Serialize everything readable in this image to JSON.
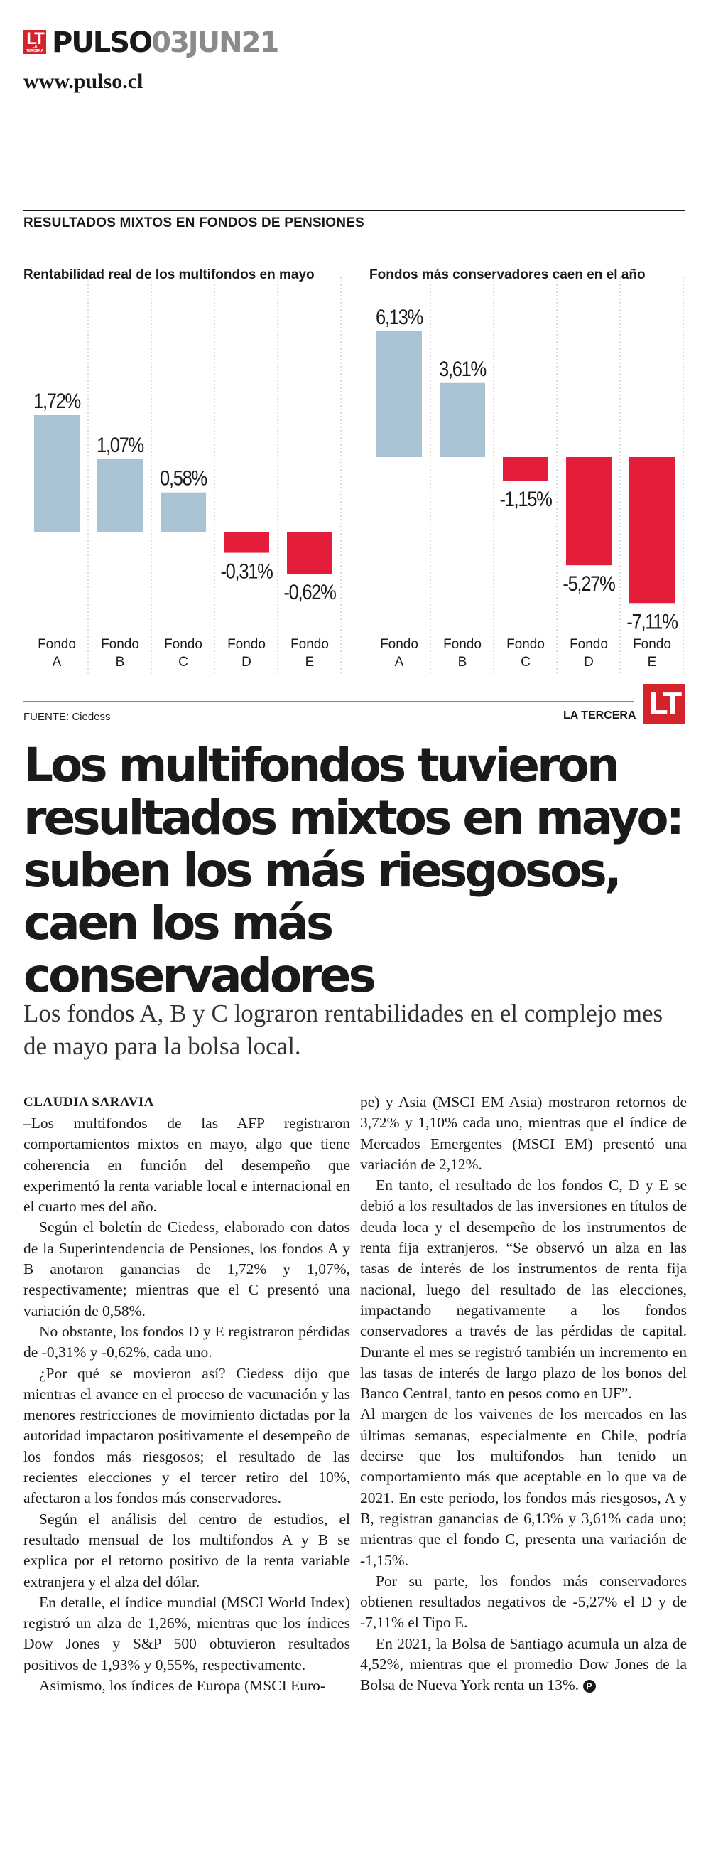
{
  "header": {
    "logo_text": "LT",
    "logo_small": "LA TERCERA",
    "section": "PULSO",
    "date": "03JUN21",
    "url": "www.pulso.cl"
  },
  "infographic": {
    "title": "RESULTADOS MIXTOS EN FONDOS DE PENSIONES",
    "source": "FUENTE: Ciedess",
    "brand": "LA TERCERA",
    "logo": "LT"
  },
  "chart_data": [
    {
      "type": "bar",
      "title": "Rentabilidad real de los multifondos en mayo",
      "categories": [
        "Fondo A",
        "Fondo B",
        "Fondo C",
        "Fondo D",
        "Fondo E"
      ],
      "values": [
        1.72,
        1.07,
        0.58,
        -0.31,
        -0.62
      ],
      "labels": [
        "1,72%",
        "1,07%",
        "0,58%",
        "-0,31%",
        "-0,62%"
      ],
      "colors": {
        "positive": "#a9c3d4",
        "negative": "#e41e3a"
      },
      "ylim": [
        -0.62,
        1.72
      ]
    },
    {
      "type": "bar",
      "title": "Fondos más conservadores caen en el año",
      "categories": [
        "Fondo A",
        "Fondo B",
        "Fondo C",
        "Fondo D",
        "Fondo E"
      ],
      "values": [
        6.13,
        3.61,
        -1.15,
        -5.27,
        -7.11
      ],
      "labels": [
        "6,13%",
        "3,61%",
        "-1,15%",
        "-5,27%",
        "-7,11%"
      ],
      "colors": {
        "positive": "#a9c3d4",
        "negative": "#e41e3a"
      },
      "ylim": [
        -7.11,
        6.13
      ]
    }
  ],
  "article": {
    "headline": "Los multifondos tuvieron resultados mixtos en mayo: suben los más riesgosos, caen los más conservadores",
    "deck": "Los fondos A, B y C lograron rentabilidades en el complejo mes de mayo para la bolsa local.",
    "byline": "CLAUDIA SARAVIA",
    "paragraphs_col1": [
      "–Los multifondos de las AFP registraron comportamientos mixtos en mayo, algo que tiene coherencia en función del desempeño que experimentó la renta variable local e internacional en el cuarto mes del año.",
      "Según el boletín de Ciedess, elaborado con datos de la Superintendencia de Pensiones, los fondos A y B anotaron ganancias de 1,72% y 1,07%, respectivamente; mientras que el C presentó una variación de 0,58%.",
      "No obstante, los fondos D y E registraron pérdidas de -0,31% y -0,62%, cada uno.",
      "¿Por qué se movieron así? Ciedess dijo que mientras el avance en el proceso de vacunación y las menores restricciones de movimiento dictadas por la autoridad impactaron positivamente el desempeño de los fondos más riesgosos; el resultado de las recientes elecciones y el tercer retiro del 10%, afectaron a los fondos más conservadores.",
      "Según el análisis del centro de estudios, el resultado mensual de los multifondos A y B se explica por el retorno positivo de la renta variable extranjera y el alza del dólar.",
      "En detalle, el índice mundial (MSCI World Index) registró un alza de 1,26%, mientras que los índices Dow Jones y S&P 500 obtuvieron resultados positivos de 1,93% y 0,55%, respectivamente.",
      "Asimismo, los índices de Europa (MSCI Euro-"
    ],
    "paragraphs_col2": [
      "pe) y Asia (MSCI EM Asia) mostraron retornos de 3,72% y 1,10% cada uno, mientras que el índice de Mercados Emergentes (MSCI EM) presentó una variación de 2,12%.",
      "En tanto, el resultado de los fondos C, D y E se debió a los resultados de las inversiones en títulos de deuda loca y el desempeño de los instrumentos de renta fija extranjeros. “Se observó un alza en las tasas de interés de los instrumentos de renta fija nacional, luego del resultado de las elecciones, impactando negativamente a los fondos conservadores a través de las pérdidas de capital. Durante el mes se registró también un incremento en las tasas de interés de largo plazo de los bonos del Banco Central, tanto en pesos como en UF”.",
      "Al margen de los vaivenes de los mercados en las últimas semanas, especialmente en Chile, podría decirse que los multifondos han tenido un comportamiento más que aceptable en lo que va de 2021. En este periodo, los fondos más riesgosos, A y B, registran ganancias de 6,13% y 3,61% cada uno; mientras que el fondo C, presenta una variación de -1,15%.",
      "Por su parte, los fondos más conservadores obtienen resultados negativos de -5,27% el D y de -7,11% el Tipo E.",
      "En 2021, la Bolsa de Santiago acumula un alza de 4,52%, mientras que el promedio Dow Jones de la Bolsa de Nueva York renta un 13%."
    ],
    "end_mark": "P"
  }
}
